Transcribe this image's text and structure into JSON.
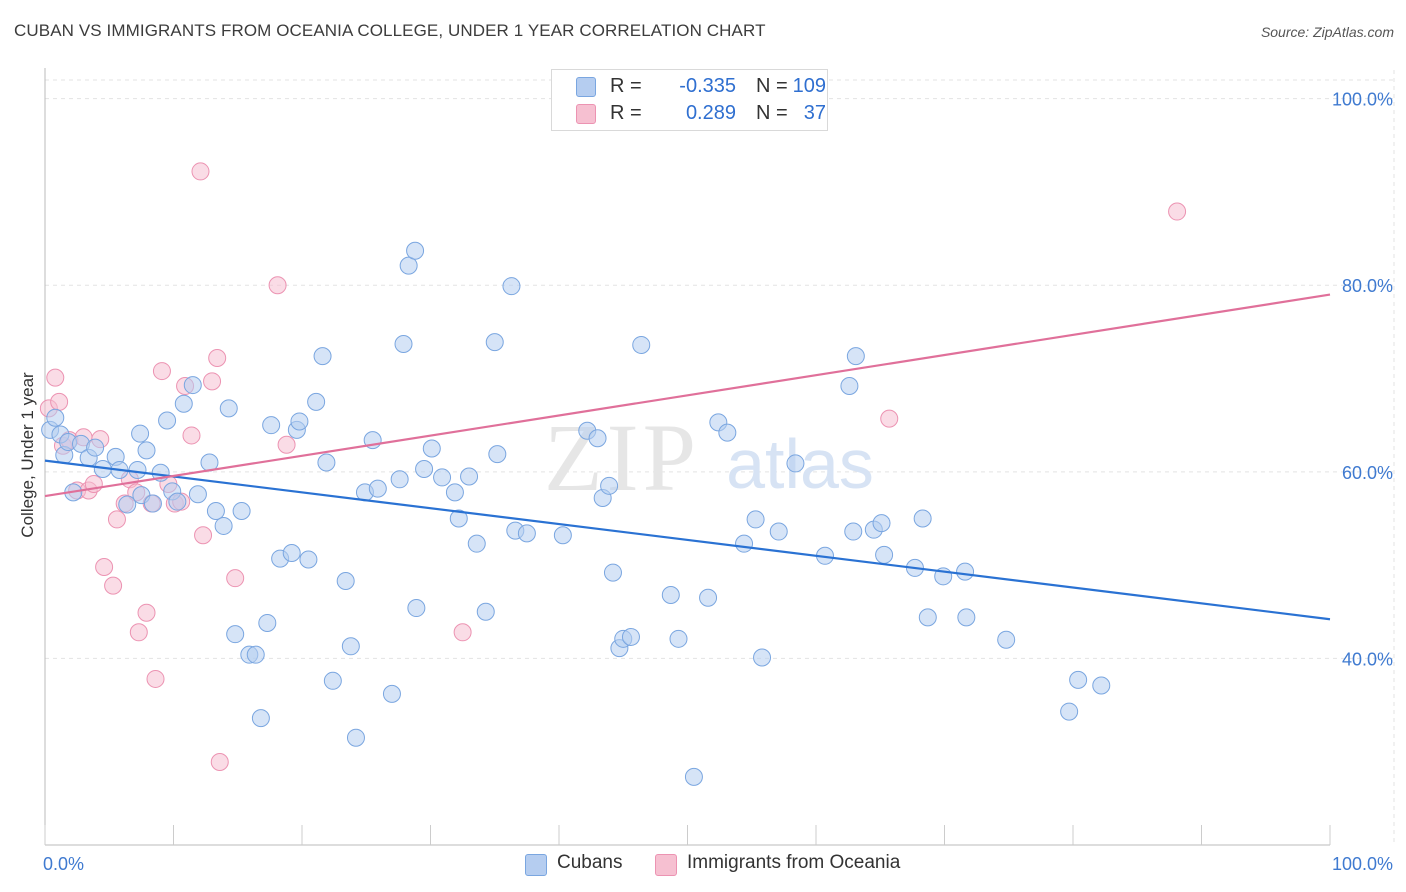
{
  "title": "CUBAN VS IMMIGRANTS FROM OCEANIA COLLEGE, UNDER 1 YEAR CORRELATION CHART",
  "source": "Source: ZipAtlas.com",
  "watermark": {
    "zip": "ZIP",
    "atlas": "atlas"
  },
  "legend": {
    "rows": [
      {
        "r_label": "R =",
        "r_value": "-0.335",
        "n_label": "N =",
        "n_value": "109"
      },
      {
        "r_label": "R =",
        "r_value": "0.289",
        "n_label": "N =",
        "n_value": "37"
      }
    ]
  },
  "bottom_legend": {
    "cubans": "Cubans",
    "oceania": "Immigrants from Oceania"
  },
  "colors": {
    "cubans_fill": "#b5cdf0",
    "cubans_stroke": "#7aa6e0",
    "cubans_line": "#2a72d3",
    "oceania_fill": "#f6c0d1",
    "oceania_stroke": "#ec93b2",
    "oceania_line": "#e0709a",
    "grid": "#e3e3e3",
    "axis_label": "#3f7ad0"
  },
  "chart_data": {
    "type": "scatter",
    "title": "CUBAN VS IMMIGRANTS FROM OCEANIA COLLEGE, UNDER 1 YEAR CORRELATION CHART",
    "xlabel": "",
    "ylabel": "College, Under 1 year",
    "xlim": [
      0,
      100
    ],
    "ylim": [
      20,
      102
    ],
    "x_tick_labels": [
      "0.0%",
      "100.0%"
    ],
    "y_ticks": [
      40,
      60,
      80,
      100
    ],
    "y_tick_labels": [
      "40.0%",
      "60.0%",
      "80.0%",
      "100.0%"
    ],
    "series": [
      {
        "name": "Cubans",
        "r": -0.335,
        "n": 109,
        "trend": {
          "x": [
            0,
            100
          ],
          "y": [
            61.2,
            44.2
          ]
        },
        "points": [
          [
            0.4,
            64.5
          ],
          [
            0.8,
            65.8
          ],
          [
            1.2,
            64.0
          ],
          [
            1.5,
            61.8
          ],
          [
            1.8,
            63.2
          ],
          [
            2.2,
            57.8
          ],
          [
            2.8,
            63.0
          ],
          [
            3.4,
            61.5
          ],
          [
            3.9,
            62.6
          ],
          [
            4.5,
            60.3
          ],
          [
            5.5,
            61.6
          ],
          [
            5.8,
            60.2
          ],
          [
            6.4,
            56.5
          ],
          [
            7.2,
            60.2
          ],
          [
            7.5,
            57.5
          ],
          [
            7.4,
            64.1
          ],
          [
            7.9,
            62.3
          ],
          [
            8.4,
            56.6
          ],
          [
            9.0,
            59.9
          ],
          [
            9.5,
            65.5
          ],
          [
            9.9,
            57.9
          ],
          [
            10.3,
            56.8
          ],
          [
            10.8,
            67.3
          ],
          [
            11.5,
            69.3
          ],
          [
            11.9,
            57.6
          ],
          [
            12.8,
            61.0
          ],
          [
            13.3,
            55.8
          ],
          [
            13.9,
            54.2
          ],
          [
            14.3,
            66.8
          ],
          [
            14.8,
            42.6
          ],
          [
            15.3,
            55.8
          ],
          [
            15.9,
            40.4
          ],
          [
            16.4,
            40.4
          ],
          [
            16.8,
            33.6
          ],
          [
            17.3,
            43.8
          ],
          [
            17.6,
            65.0
          ],
          [
            18.3,
            50.7
          ],
          [
            19.2,
            51.3
          ],
          [
            19.6,
            64.5
          ],
          [
            19.8,
            65.4
          ],
          [
            20.5,
            50.6
          ],
          [
            21.1,
            67.5
          ],
          [
            21.6,
            72.4
          ],
          [
            21.9,
            61.0
          ],
          [
            22.4,
            37.6
          ],
          [
            23.4,
            48.3
          ],
          [
            23.8,
            41.3
          ],
          [
            24.2,
            31.5
          ],
          [
            24.9,
            57.8
          ],
          [
            25.5,
            63.4
          ],
          [
            25.9,
            58.2
          ],
          [
            27.0,
            36.2
          ],
          [
            27.6,
            59.2
          ],
          [
            27.9,
            73.7
          ],
          [
            28.3,
            82.1
          ],
          [
            28.9,
            45.4
          ],
          [
            28.8,
            83.7
          ],
          [
            29.5,
            60.3
          ],
          [
            30.1,
            62.5
          ],
          [
            30.9,
            59.4
          ],
          [
            31.9,
            57.8
          ],
          [
            32.2,
            55.0
          ],
          [
            33.0,
            59.5
          ],
          [
            33.6,
            52.3
          ],
          [
            34.3,
            45.0
          ],
          [
            35.0,
            73.9
          ],
          [
            35.2,
            61.9
          ],
          [
            36.3,
            79.9
          ],
          [
            36.6,
            53.7
          ],
          [
            37.5,
            53.4
          ],
          [
            40.3,
            53.2
          ],
          [
            42.2,
            64.4
          ],
          [
            43.0,
            63.6
          ],
          [
            43.4,
            57.2
          ],
          [
            43.9,
            58.5
          ],
          [
            44.2,
            49.2
          ],
          [
            44.7,
            41.1
          ],
          [
            45.0,
            42.1
          ],
          [
            45.6,
            42.3
          ],
          [
            46.4,
            73.6
          ],
          [
            48.7,
            46.8
          ],
          [
            49.3,
            42.1
          ],
          [
            50.5,
            27.3
          ],
          [
            51.6,
            46.5
          ],
          [
            52.4,
            65.3
          ],
          [
            53.1,
            64.2
          ],
          [
            54.4,
            52.3
          ],
          [
            55.3,
            54.9
          ],
          [
            55.8,
            40.1
          ],
          [
            57.1,
            53.6
          ],
          [
            58.4,
            60.9
          ],
          [
            60.7,
            51.0
          ],
          [
            62.6,
            69.2
          ],
          [
            62.9,
            53.6
          ],
          [
            63.1,
            72.4
          ],
          [
            64.5,
            53.8
          ],
          [
            65.1,
            54.5
          ],
          [
            65.3,
            51.1
          ],
          [
            67.7,
            49.7
          ],
          [
            68.3,
            55.0
          ],
          [
            68.7,
            44.4
          ],
          [
            69.9,
            48.8
          ],
          [
            71.6,
            49.3
          ],
          [
            71.7,
            44.4
          ],
          [
            74.8,
            42.0
          ],
          [
            79.7,
            34.3
          ],
          [
            80.4,
            37.7
          ],
          [
            82.2,
            37.1
          ]
        ]
      },
      {
        "name": "Immigrants from Oceania",
        "r": 0.289,
        "n": 37,
        "trend": {
          "x": [
            0,
            100
          ],
          "y": [
            57.4,
            79.0
          ]
        },
        "points": [
          [
            0.3,
            66.8
          ],
          [
            0.8,
            70.1
          ],
          [
            1.1,
            67.5
          ],
          [
            1.4,
            62.8
          ],
          [
            1.9,
            63.4
          ],
          [
            2.5,
            58.0
          ],
          [
            3.0,
            63.7
          ],
          [
            3.4,
            58.0
          ],
          [
            3.8,
            58.7
          ],
          [
            4.3,
            63.5
          ],
          [
            4.6,
            49.8
          ],
          [
            5.3,
            47.8
          ],
          [
            5.6,
            54.9
          ],
          [
            6.2,
            56.6
          ],
          [
            6.6,
            59.2
          ],
          [
            7.1,
            57.8
          ],
          [
            7.3,
            42.8
          ],
          [
            7.9,
            44.9
          ],
          [
            8.3,
            56.6
          ],
          [
            8.6,
            37.8
          ],
          [
            9.1,
            70.8
          ],
          [
            9.6,
            58.7
          ],
          [
            10.1,
            56.6
          ],
          [
            10.6,
            56.8
          ],
          [
            10.9,
            69.2
          ],
          [
            11.4,
            63.9
          ],
          [
            12.3,
            53.2
          ],
          [
            12.1,
            92.2
          ],
          [
            13.0,
            69.7
          ],
          [
            13.4,
            72.2
          ],
          [
            13.6,
            28.9
          ],
          [
            14.8,
            48.6
          ],
          [
            18.1,
            80.0
          ],
          [
            18.8,
            62.9
          ],
          [
            32.5,
            42.8
          ],
          [
            65.7,
            65.7
          ],
          [
            88.1,
            87.9
          ]
        ]
      }
    ]
  }
}
